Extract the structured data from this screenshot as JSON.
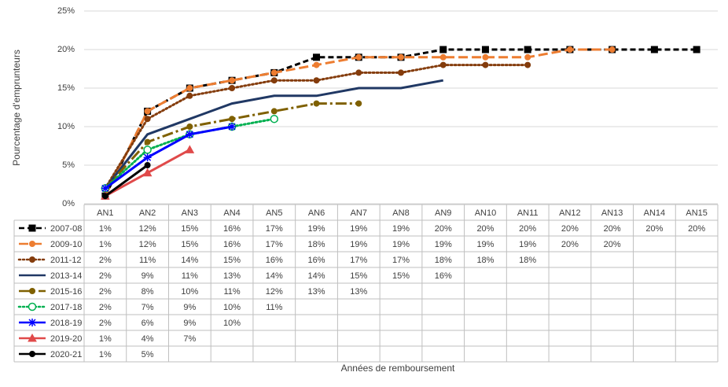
{
  "chart_data": {
    "type": "line",
    "y_label": "Pourcentage d'emprunteurs",
    "x_label": "Années de remboursement",
    "categories": [
      "AN1",
      "AN2",
      "AN3",
      "AN4",
      "AN5",
      "AN6",
      "AN7",
      "AN8",
      "AN9",
      "AN10",
      "AN11",
      "AN12",
      "AN13",
      "AN14",
      "AN15"
    ],
    "ylim": [
      0,
      25
    ],
    "yticks": [
      {
        "value": 0,
        "label": "0%"
      },
      {
        "value": 5,
        "label": "5%"
      },
      {
        "value": 10,
        "label": "10%"
      },
      {
        "value": 15,
        "label": "15%"
      },
      {
        "value": 20,
        "label": "20%"
      },
      {
        "value": 25,
        "label": "25%"
      }
    ],
    "grid": true,
    "series": [
      {
        "name": "2007-08",
        "color": "#000000",
        "dash": "dashed",
        "marker": "square",
        "values": [
          1,
          12,
          15,
          16,
          17,
          19,
          19,
          19,
          20,
          20,
          20,
          20,
          20,
          20,
          20
        ],
        "value_labels": [
          "1%",
          "12%",
          "15%",
          "16%",
          "17%",
          "19%",
          "19%",
          "19%",
          "20%",
          "20%",
          "20%",
          "20%",
          "20%",
          "20%",
          "20%"
        ]
      },
      {
        "name": "2009-10",
        "color": "#ed7d31",
        "dash": "long-dash",
        "marker": "circle",
        "values": [
          1,
          12,
          15,
          16,
          17,
          18,
          19,
          19,
          19,
          19,
          19,
          20,
          20,
          null,
          null
        ],
        "value_labels": [
          "1%",
          "12%",
          "15%",
          "16%",
          "17%",
          "18%",
          "19%",
          "19%",
          "19%",
          "19%",
          "19%",
          "20%",
          "20%",
          null,
          null
        ]
      },
      {
        "name": "2011-12",
        "color": "#843c0c",
        "dash": "dotted",
        "marker": "circle",
        "values": [
          2,
          11,
          14,
          15,
          16,
          16,
          17,
          17,
          18,
          18,
          18,
          null,
          null,
          null,
          null
        ],
        "value_labels": [
          "2%",
          "11%",
          "14%",
          "15%",
          "16%",
          "16%",
          "17%",
          "17%",
          "18%",
          "18%",
          "18%",
          null,
          null,
          null,
          null
        ]
      },
      {
        "name": "2013-14",
        "color": "#203864",
        "dash": "solid",
        "marker": "none",
        "values": [
          2,
          9,
          11,
          13,
          14,
          14,
          15,
          15,
          16,
          null,
          null,
          null,
          null,
          null,
          null
        ],
        "value_labels": [
          "2%",
          "9%",
          "11%",
          "13%",
          "14%",
          "14%",
          "15%",
          "15%",
          "16%",
          null,
          null,
          null,
          null,
          null,
          null
        ]
      },
      {
        "name": "2015-16",
        "color": "#7f6000",
        "dash": "dash-dot",
        "marker": "circle",
        "values": [
          2,
          8,
          10,
          11,
          12,
          13,
          13,
          null,
          null,
          null,
          null,
          null,
          null,
          null,
          null
        ],
        "value_labels": [
          "2%",
          "8%",
          "10%",
          "11%",
          "12%",
          "13%",
          "13%",
          null,
          null,
          null,
          null,
          null,
          null,
          null,
          null
        ]
      },
      {
        "name": "2017-18",
        "color": "#00b050",
        "dash": "dotted",
        "marker": "open-circle",
        "values": [
          2,
          7,
          9,
          10,
          11,
          null,
          null,
          null,
          null,
          null,
          null,
          null,
          null,
          null,
          null
        ],
        "value_labels": [
          "2%",
          "7%",
          "9%",
          "10%",
          "11%",
          null,
          null,
          null,
          null,
          null,
          null,
          null,
          null,
          null,
          null
        ]
      },
      {
        "name": "2018-19",
        "color": "#0000ff",
        "dash": "solid",
        "marker": "star",
        "values": [
          2,
          6,
          9,
          10,
          null,
          null,
          null,
          null,
          null,
          null,
          null,
          null,
          null,
          null,
          null
        ],
        "value_labels": [
          "2%",
          "6%",
          "9%",
          "10%",
          null,
          null,
          null,
          null,
          null,
          null,
          null,
          null,
          null,
          null,
          null
        ]
      },
      {
        "name": "2019-20",
        "color": "#e04a4a",
        "dash": "solid",
        "marker": "triangle",
        "values": [
          1,
          4,
          7,
          null,
          null,
          null,
          null,
          null,
          null,
          null,
          null,
          null,
          null,
          null,
          null
        ],
        "value_labels": [
          "1%",
          "4%",
          "7%",
          null,
          null,
          null,
          null,
          null,
          null,
          null,
          null,
          null,
          null,
          null,
          null
        ]
      },
      {
        "name": "2020-21",
        "color": "#000000",
        "dash": "solid",
        "marker": "circle",
        "values": [
          1,
          5,
          null,
          null,
          null,
          null,
          null,
          null,
          null,
          null,
          null,
          null,
          null,
          null,
          null
        ],
        "value_labels": [
          "1%",
          "5%",
          null,
          null,
          null,
          null,
          null,
          null,
          null,
          null,
          null,
          null,
          null,
          null,
          null
        ]
      }
    ]
  }
}
